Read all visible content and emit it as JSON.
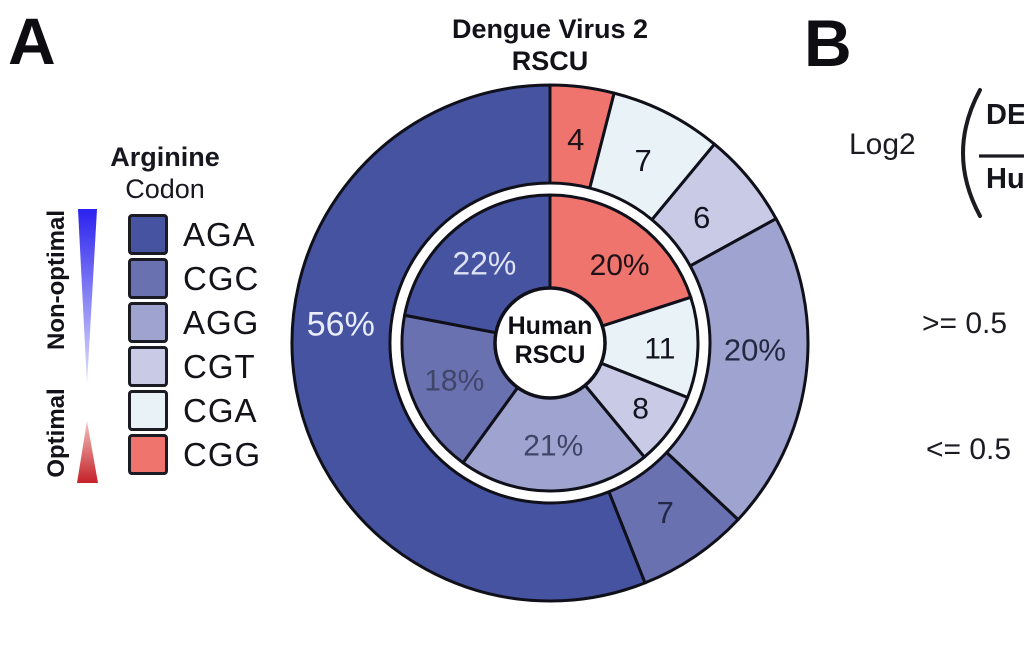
{
  "panel_a": {
    "label": "A",
    "legend": {
      "title_line1": "Arginine",
      "title_line2": "Codon",
      "gradient_label_top": "Non-optimal",
      "gradient_label_bottom": "Optimal",
      "gradient_top_color": "#2a22ef",
      "gradient_bottom_color": "#c42127",
      "items": [
        {
          "codon": "AGA",
          "color": "#4653a0"
        },
        {
          "codon": "CGC",
          "color": "#6a71b0"
        },
        {
          "codon": "AGG",
          "color": "#9fa3cf"
        },
        {
          "codon": "CGT",
          "color": "#c9cbe6"
        },
        {
          "codon": "CGA",
          "color": "#e9f2f7"
        },
        {
          "codon": "CGG",
          "color": "#ef746e"
        }
      ]
    }
  },
  "panel_b": {
    "label": "B",
    "formula_prefix": "Log2",
    "fraction_numerator": "DE",
    "fraction_denominator": "Hu",
    "threshold_upper": ">= 0.5",
    "threshold_lower": "<= 0.5"
  },
  "chart_data": {
    "type": "pie",
    "subtype": "nested-donut",
    "title_line1": "Dengue Virus 2",
    "title_line2": "RSCU",
    "center_label_line1": "Human",
    "center_label_line2": "RSCU",
    "start_angle_deg": 0,
    "direction": "clockwise",
    "units": "percent of arginine codon usage",
    "outline_color": "#10101a",
    "codon_colors": {
      "AGA": "#4653a0",
      "CGC": "#6a71b0",
      "AGG": "#9fa3cf",
      "CGT": "#c9cbe6",
      "CGA": "#e9f2f7",
      "CGG": "#ef746e"
    },
    "rings": [
      {
        "name": "Dengue Virus 2 RSCU",
        "position": "outer",
        "slices": [
          {
            "codon": "CGG",
            "value": 4,
            "label": "4",
            "label_color": "#1f1218"
          },
          {
            "codon": "CGA",
            "value": 7,
            "label": "7",
            "label_color": "#131320"
          },
          {
            "codon": "CGT",
            "value": 6,
            "label": "6",
            "label_color": "#131320",
            "label_r": 197
          },
          {
            "codon": "AGG",
            "value": 20,
            "label": "20%",
            "label_color": "#232942",
            "label_angle": 92
          },
          {
            "codon": "CGC",
            "value": 7,
            "label": "7",
            "label_color": "#222745"
          },
          {
            "codon": "AGA",
            "value": 56,
            "label": "56%",
            "label_color": "#e9ecfa",
            "label_angle": 275,
            "label_r": 210,
            "label_size": 34
          }
        ]
      },
      {
        "name": "Human RSCU",
        "position": "inner",
        "slices": [
          {
            "codon": "CGG",
            "value": 20,
            "label": "20%",
            "label_color": "#1f1218",
            "label_angle": 42,
            "label_r": 104
          },
          {
            "codon": "CGA",
            "value": 11,
            "label": "11",
            "label_color": "#131320",
            "label_angle": 93,
            "label_r": 110
          },
          {
            "codon": "CGT",
            "value": 8,
            "label": "8",
            "label_color": "#131320",
            "label_r": 112
          },
          {
            "codon": "AGG",
            "value": 21,
            "label": "21%",
            "label_color": "#3f4468"
          },
          {
            "codon": "CGC",
            "value": 18,
            "label": "18%",
            "label_color": "#40466a"
          },
          {
            "codon": "AGA",
            "value": 22,
            "label": "22%",
            "label_color": "#dde2f5",
            "label_size": 32
          }
        ]
      }
    ]
  }
}
